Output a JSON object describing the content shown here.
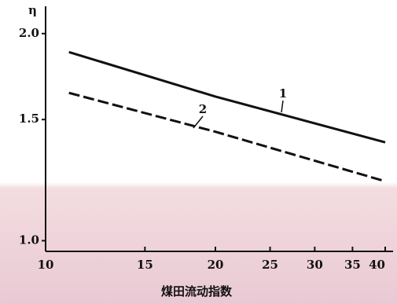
{
  "chart_data": {
    "type": "line",
    "y_label": "η",
    "x_label": "煤田流动指数",
    "xscale": "log",
    "yscale": "log",
    "xlim": [
      10,
      40
    ],
    "ylim": [
      0.97,
      2.18
    ],
    "xticks": [
      10,
      15,
      20,
      25,
      30,
      35,
      40
    ],
    "yticks": [
      {
        "value": 1.0,
        "label": "1.0"
      },
      {
        "value": 1.5,
        "label": "1.5"
      },
      {
        "value": 2.0,
        "label": "2.0"
      }
    ],
    "x": [
      11,
      20,
      40
    ],
    "series": [
      {
        "name": "1",
        "color": "#111111",
        "dash": false,
        "values": [
          1.88,
          1.62,
          1.39
        ]
      },
      {
        "name": "2",
        "color": "#111111",
        "dash": true,
        "values": [
          1.64,
          1.44,
          1.22
        ]
      }
    ]
  }
}
